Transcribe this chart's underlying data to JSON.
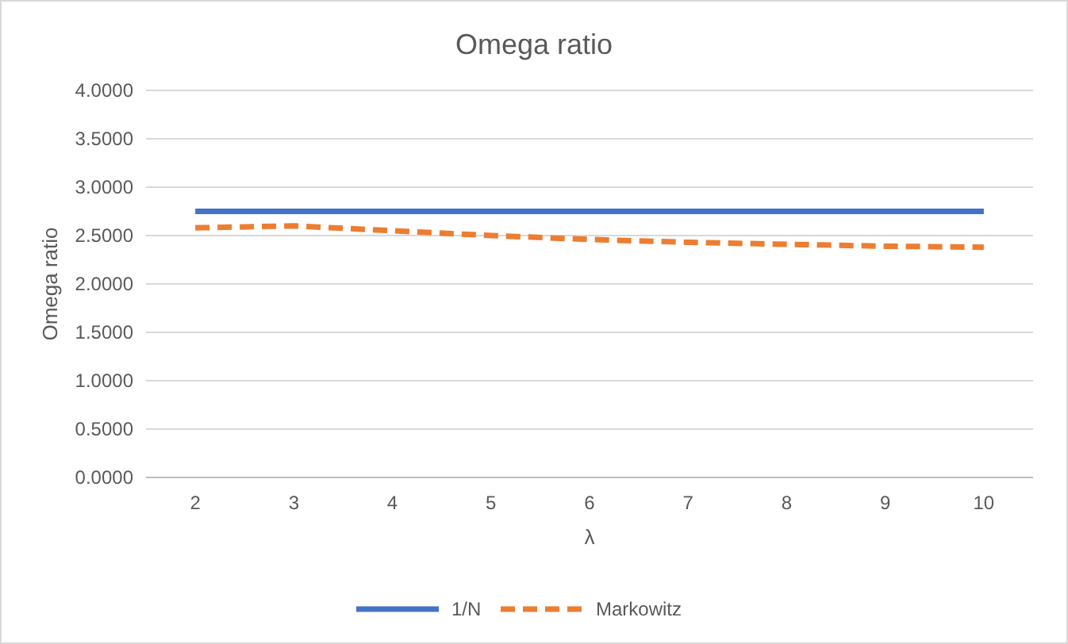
{
  "chart_data": {
    "type": "line",
    "title": "Omega ratio",
    "xlabel": "λ",
    "ylabel": "Omega ratio",
    "categories": [
      "2",
      "3",
      "4",
      "5",
      "6",
      "7",
      "8",
      "9",
      "10"
    ],
    "series": [
      {
        "name": "1/N",
        "color": "#4472c4",
        "values": [
          2.75,
          2.75,
          2.75,
          2.75,
          2.75,
          2.75,
          2.75,
          2.75,
          2.75
        ],
        "line_style": "solid"
      },
      {
        "name": "Markowitz",
        "color": "#ed7d31",
        "values": [
          2.58,
          2.6,
          2.55,
          2.5,
          2.46,
          2.43,
          2.41,
          2.39,
          2.38
        ],
        "line_style": "dashed"
      }
    ],
    "ylim": [
      0,
      4
    ],
    "yticks": [
      {
        "value": 0,
        "label": "0.0000"
      },
      {
        "value": 0.5,
        "label": "0.5000"
      },
      {
        "value": 1,
        "label": "1.0000"
      },
      {
        "value": 1.5,
        "label": "1.5000"
      },
      {
        "value": 2,
        "label": "2.0000"
      },
      {
        "value": 2.5,
        "label": "2.5000"
      },
      {
        "value": 3,
        "label": "3.0000"
      },
      {
        "value": 3.5,
        "label": "3.5000"
      },
      {
        "value": 4,
        "label": "4.0000"
      }
    ],
    "grid": "y",
    "legend": "bottom",
    "marker": "none"
  }
}
